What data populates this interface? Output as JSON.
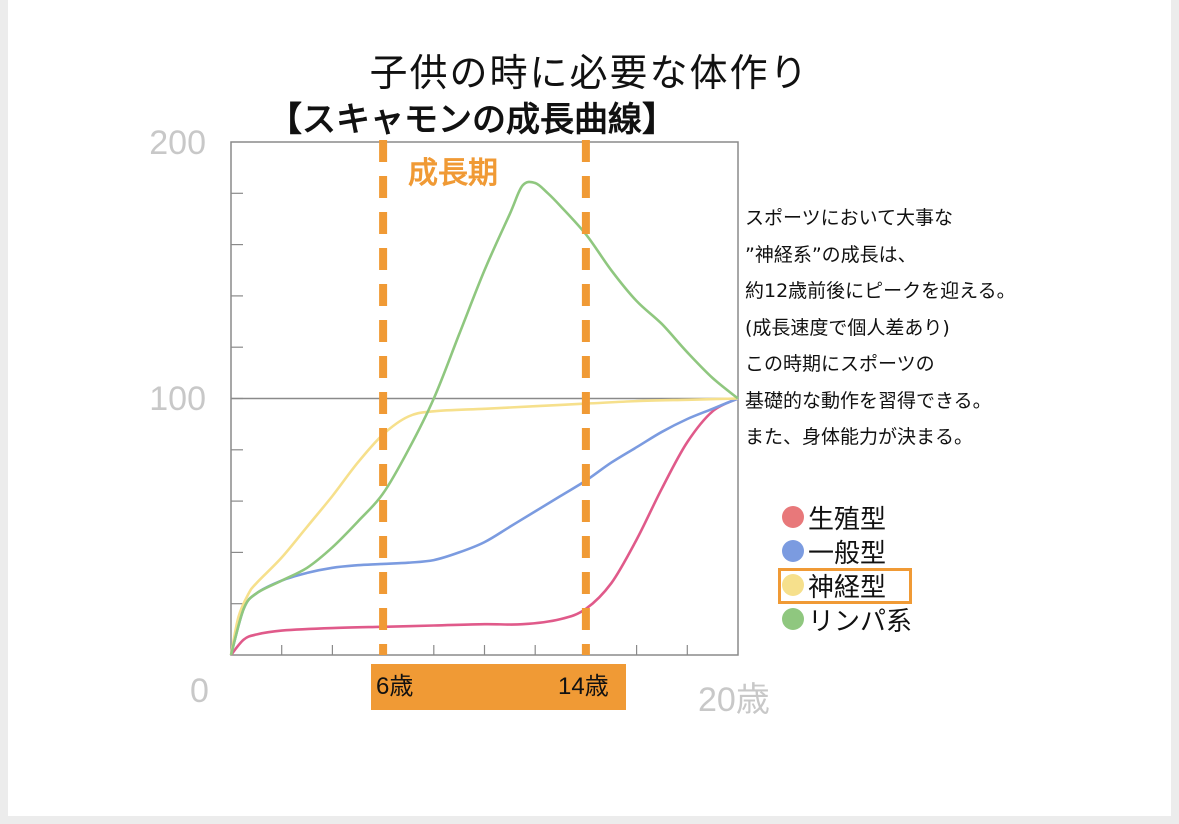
{
  "header": {
    "title": "子供の時に必要な体作り",
    "subtitle": "【スキャモンの成長曲線】"
  },
  "annotations": {
    "growth_period_label": "成長期",
    "growth_period_color": "#f09a35",
    "age_start_label": "6歳",
    "age_end_label": "14歳"
  },
  "note": {
    "lines": [
      "スポーツにおいて大事な",
      "”神経系”の成長は、",
      "約12歳前後にピークを迎える。",
      "(成長速度で個人差あり)",
      "この時期にスポーツの",
      "基礎的な動作を習得できる。",
      "また、身体能力が決まる。"
    ]
  },
  "chart_data": {
    "type": "line",
    "title": "",
    "xlabel": "",
    "ylabel": "",
    "xlim": [
      0,
      20
    ],
    "ylim": [
      0,
      200
    ],
    "y_ticks": [
      "0",
      "100",
      "200"
    ],
    "x_tick_labels": [
      "0",
      "6歳",
      "14歳",
      "20歳"
    ],
    "reference_line_y": 100,
    "highlight_x": [
      6,
      14
    ],
    "legend_position": "right",
    "series": [
      {
        "name": "生殖型",
        "color": "#e05a8a",
        "legend_color": "#e8787a",
        "points": [
          [
            0,
            0
          ],
          [
            0.5,
            6
          ],
          [
            1,
            8
          ],
          [
            2,
            9.5
          ],
          [
            4,
            10.5
          ],
          [
            6,
            11
          ],
          [
            8,
            11.5
          ],
          [
            10,
            12
          ],
          [
            11.5,
            12
          ],
          [
            13,
            14
          ],
          [
            14,
            18
          ],
          [
            15,
            28
          ],
          [
            16,
            45
          ],
          [
            17,
            65
          ],
          [
            18,
            83
          ],
          [
            19,
            95
          ],
          [
            20,
            100
          ]
        ]
      },
      {
        "name": "一般型",
        "color": "#7b9be0",
        "legend_color": "#7b9be0",
        "points": [
          [
            0,
            0
          ],
          [
            0.5,
            18
          ],
          [
            1,
            24
          ],
          [
            2,
            29
          ],
          [
            3,
            32
          ],
          [
            4,
            34
          ],
          [
            5,
            35
          ],
          [
            6,
            35.5
          ],
          [
            7,
            36
          ],
          [
            8,
            37
          ],
          [
            9,
            40
          ],
          [
            10,
            44
          ],
          [
            11,
            50
          ],
          [
            12,
            56
          ],
          [
            13,
            62
          ],
          [
            14,
            68
          ],
          [
            15,
            75
          ],
          [
            16,
            81
          ],
          [
            17,
            87
          ],
          [
            18,
            92
          ],
          [
            19,
            96
          ],
          [
            20,
            100
          ]
        ]
      },
      {
        "name": "神経型",
        "color": "#f6e08c",
        "legend_color": "#f6e08c",
        "highlighted": true,
        "points": [
          [
            0,
            0
          ],
          [
            0.3,
            15
          ],
          [
            0.7,
            24
          ],
          [
            1,
            28
          ],
          [
            2,
            38
          ],
          [
            3,
            50
          ],
          [
            4,
            62
          ],
          [
            5,
            75
          ],
          [
            6,
            86
          ],
          [
            7,
            93
          ],
          [
            8,
            95
          ],
          [
            10,
            96
          ],
          [
            12,
            97
          ],
          [
            14,
            98
          ],
          [
            16,
            99
          ],
          [
            18,
            99.5
          ],
          [
            20,
            100
          ]
        ]
      },
      {
        "name": "リンパ系",
        "color": "#8fc77f",
        "legend_color": "#8fc77f",
        "points": [
          [
            0,
            0
          ],
          [
            0.5,
            18
          ],
          [
            1,
            24
          ],
          [
            2,
            29
          ],
          [
            3,
            34
          ],
          [
            4,
            42
          ],
          [
            5,
            52
          ],
          [
            6,
            63
          ],
          [
            7,
            80
          ],
          [
            8,
            100
          ],
          [
            9,
            125
          ],
          [
            10,
            150
          ],
          [
            11,
            172
          ],
          [
            11.5,
            183
          ],
          [
            12,
            184
          ],
          [
            12.5,
            180
          ],
          [
            13,
            175
          ],
          [
            14,
            164
          ],
          [
            15,
            150
          ],
          [
            16,
            138
          ],
          [
            17,
            129
          ],
          [
            18,
            118
          ],
          [
            19,
            108
          ],
          [
            20,
            100
          ]
        ]
      }
    ]
  }
}
